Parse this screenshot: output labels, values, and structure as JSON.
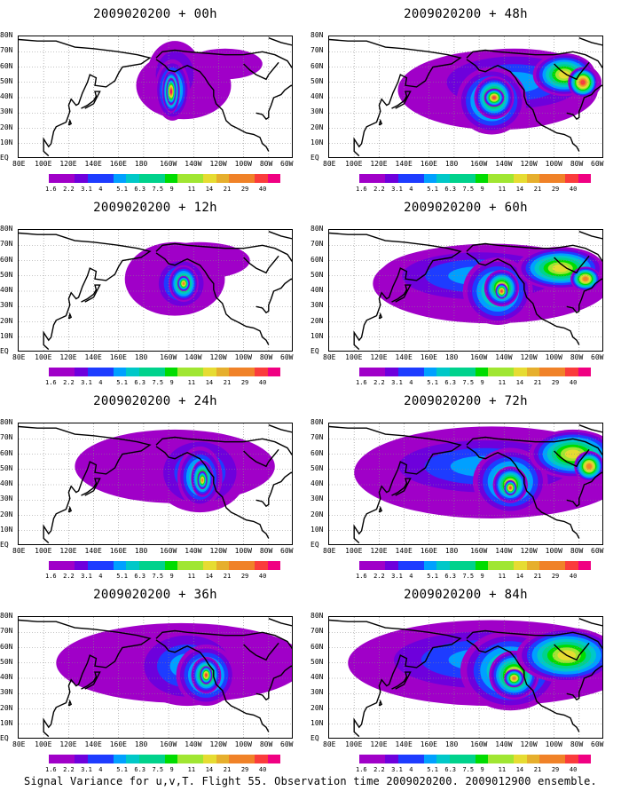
{
  "caption": "Signal Variance for u,v,T. Flight 55. Observation time 2009020200. 2009012900 ensemble.",
  "panels": [
    {
      "title": "2009020200 + 00h",
      "lead": "00h"
    },
    {
      "title": "2009020200 + 48h",
      "lead": "48h"
    },
    {
      "title": "2009020200 + 12h",
      "lead": "12h"
    },
    {
      "title": "2009020200 + 60h",
      "lead": "60h"
    },
    {
      "title": "2009020200 + 24h",
      "lead": "24h"
    },
    {
      "title": "2009020200 + 72h",
      "lead": "72h"
    },
    {
      "title": "2009020200 + 36h",
      "lead": "36h"
    },
    {
      "title": "2009020200 + 84h",
      "lead": "84h"
    }
  ],
  "axes": {
    "lat_labels": [
      "80N",
      "70N",
      "60N",
      "50N",
      "40N",
      "30N",
      "20N",
      "10N",
      "EQ"
    ],
    "lon_labels": [
      "80E",
      "100E",
      "120E",
      "140E",
      "160E",
      "180",
      "160W",
      "140W",
      "120W",
      "100W",
      "80W",
      "60W"
    ]
  },
  "colorbar": {
    "levels": [
      "1.6",
      "2.2",
      "3.1",
      "4",
      "5.1",
      "6.3",
      "7.5",
      "9",
      "11",
      "14",
      "21",
      "29",
      "40"
    ],
    "colors": [
      "#a000c8",
      "#6e00dc",
      "#1e3cff",
      "#00a0ff",
      "#00c8c8",
      "#00d28c",
      "#00dc00",
      "#a0e632",
      "#e6dc32",
      "#e6af2d",
      "#f08228",
      "#fa3c3c",
      "#f00082"
    ]
  }
}
